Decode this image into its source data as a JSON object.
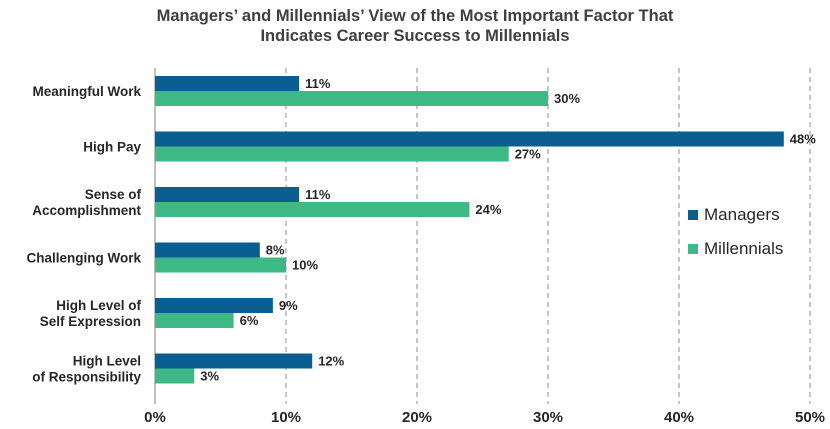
{
  "chart_data": {
    "type": "bar",
    "orientation": "horizontal",
    "title_lines": [
      "Managers’ and Millennials’ View of the Most Important Factor That",
      "Indicates Career Success to Millennials"
    ],
    "categories": [
      [
        "Meaningful Work"
      ],
      [
        "High Pay"
      ],
      [
        "Sense of",
        "Accomplishment"
      ],
      [
        "Challenging Work"
      ],
      [
        "High Level of",
        "Self Expression"
      ],
      [
        "High Level",
        "of Responsibility"
      ]
    ],
    "series": [
      {
        "name": "Managers",
        "color": "#0b5e91",
        "values": [
          11,
          48,
          11,
          8,
          9,
          12
        ],
        "labels": [
          "11%",
          "48%",
          "11%",
          "8%",
          "9%",
          "12%"
        ]
      },
      {
        "name": "Millennials",
        "color": "#3eb884",
        "values": [
          30,
          27,
          24,
          10,
          6,
          3
        ],
        "labels": [
          "30%",
          "27%",
          "24%",
          "10%",
          "6%",
          "3%"
        ]
      }
    ],
    "xlim": [
      0,
      50
    ],
    "x_ticks": [
      "0%",
      "10%",
      "20%",
      "30%",
      "40%",
      "50%"
    ],
    "grid": "vertical dashed",
    "legend_position": "right"
  }
}
